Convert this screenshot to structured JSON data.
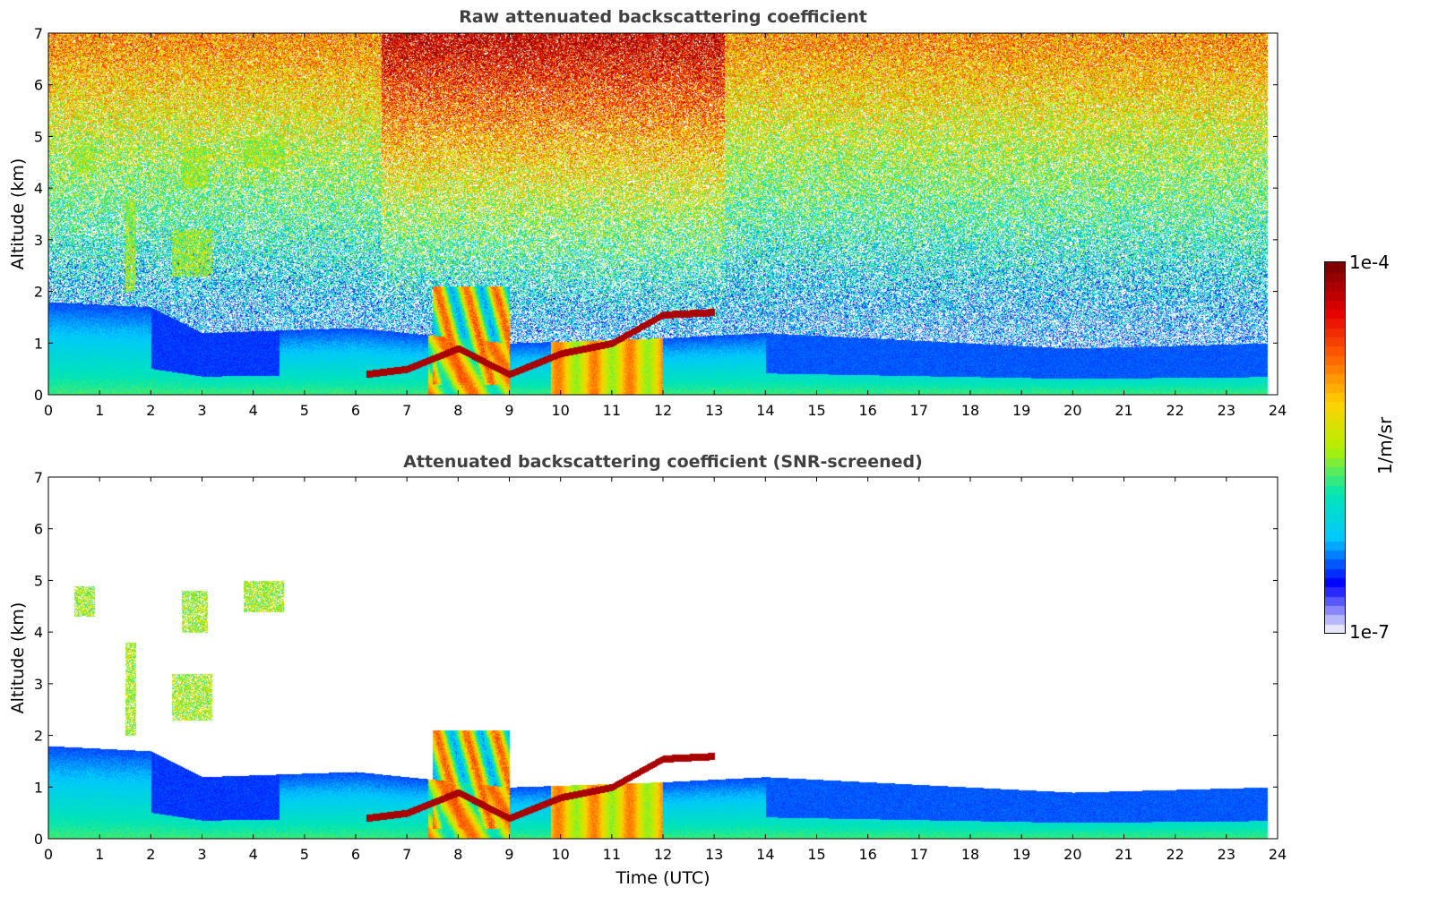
{
  "colorbar": {
    "max_label": "1e-4",
    "min_label": "1e-7",
    "unit": "1/m/sr",
    "colormap": [
      "#e6e6fa",
      "#0000ff",
      "#00c8ff",
      "#00e6b4",
      "#b4f000",
      "#ffd200",
      "#ff6400",
      "#e60000",
      "#800000"
    ]
  },
  "chart_data": [
    {
      "type": "heatmap",
      "title": "Raw attenuated backscattering coefficient",
      "xlabel": "",
      "ylabel": "Altitude (km)",
      "xlim": [
        0,
        24
      ],
      "ylim": [
        0,
        7
      ],
      "x_ticks": [
        "0",
        "1",
        "2",
        "3",
        "4",
        "5",
        "6",
        "7",
        "8",
        "9",
        "10",
        "11",
        "12",
        "13",
        "14",
        "15",
        "16",
        "17",
        "18",
        "19",
        "20",
        "21",
        "22",
        "23",
        "24"
      ],
      "y_ticks": [
        "0",
        "1",
        "2",
        "3",
        "4",
        "5",
        "6",
        "7"
      ],
      "data_end_time": 23.8,
      "layers": [
        {
          "kind": "noise-background",
          "description_level": "high above 2 km, most intense 7-13 UTC"
        },
        {
          "kind": "boundary-layer",
          "x": [
            0,
            2,
            3,
            6,
            9,
            12,
            14,
            18,
            20,
            23.8
          ],
          "top_km": [
            1.8,
            1.7,
            1.2,
            1.3,
            1.0,
            1.1,
            1.2,
            1.0,
            0.9,
            1.0
          ]
        },
        {
          "kind": "cloud-base",
          "x": [
            6.2,
            7.0,
            8.0,
            9.0,
            10.0,
            11.0,
            12.0,
            13.0
          ],
          "base_km": [
            0.4,
            0.5,
            0.9,
            0.4,
            0.8,
            1.0,
            1.55,
            1.6
          ]
        }
      ]
    },
    {
      "type": "heatmap",
      "title": "Attenuated backscattering coefficient (SNR-screened)",
      "xlabel": "Time (UTC)",
      "ylabel": "Altitude (km)",
      "xlim": [
        0,
        24
      ],
      "ylim": [
        0,
        7
      ],
      "x_ticks": [
        "0",
        "1",
        "2",
        "3",
        "4",
        "5",
        "6",
        "7",
        "8",
        "9",
        "10",
        "11",
        "12",
        "13",
        "14",
        "15",
        "16",
        "17",
        "18",
        "19",
        "20",
        "21",
        "22",
        "23",
        "24"
      ],
      "y_ticks": [
        "0",
        "1",
        "2",
        "3",
        "4",
        "5",
        "6",
        "7"
      ],
      "data_end_time": 23.8,
      "layers": [
        {
          "kind": "boundary-layer",
          "x": [
            0,
            2,
            3,
            6,
            9,
            12,
            14,
            18,
            20,
            23.8
          ],
          "top_km": [
            1.8,
            1.7,
            1.2,
            1.3,
            1.0,
            1.1,
            1.2,
            1.0,
            0.9,
            1.0
          ]
        },
        {
          "kind": "cloud-base",
          "x": [
            6.2,
            7.0,
            8.0,
            9.0,
            10.0,
            11.0,
            12.0,
            13.0
          ],
          "base_km": [
            0.4,
            0.5,
            0.9,
            0.4,
            0.8,
            1.0,
            1.55,
            1.6
          ]
        }
      ]
    }
  ]
}
